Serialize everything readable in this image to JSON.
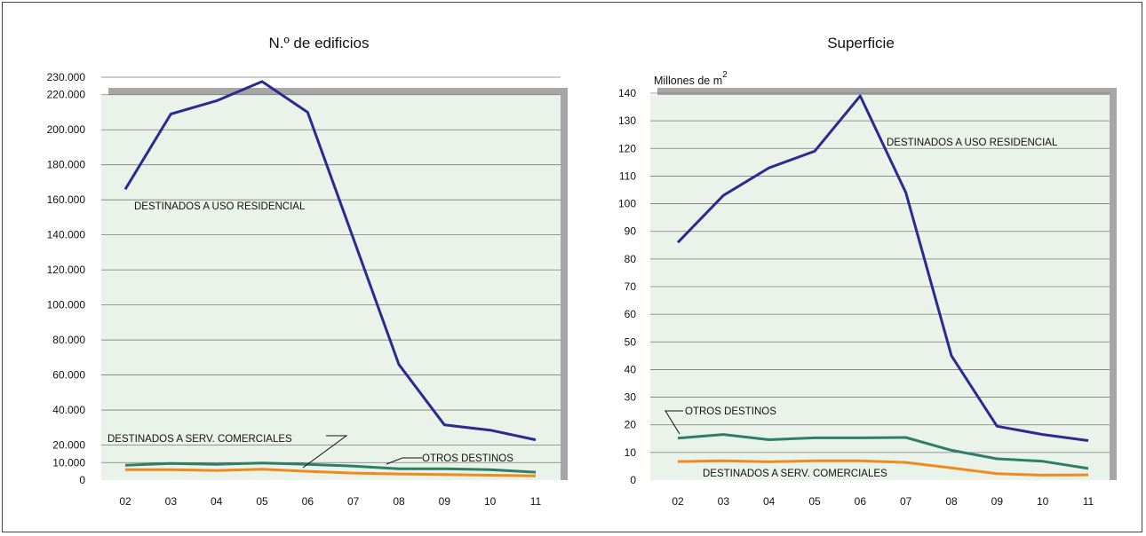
{
  "chart_data": [
    {
      "type": "line",
      "title": "N.º de edificios",
      "x": [
        "02",
        "03",
        "04",
        "05",
        "06",
        "07",
        "08",
        "09",
        "10",
        "11"
      ],
      "yticks": [
        0,
        10000,
        20000,
        40000,
        60000,
        80000,
        100000,
        120000,
        140000,
        160000,
        180000,
        200000,
        220000,
        230000
      ],
      "ytick_labels": [
        "0",
        "10.000",
        "20.000",
        "40.000",
        "60.000",
        "80.000",
        "100.000",
        "120.000",
        "140.000",
        "160.000",
        "180.000",
        "200.000",
        "220.000",
        "230.000"
      ],
      "ylim": [
        0,
        230000
      ],
      "grid": true,
      "series": [
        {
          "name": "DESTINADOS A USO RESIDENCIAL",
          "color": "#2b2b8f",
          "values": [
            166000,
            209000,
            216500,
            227500,
            210000,
            138000,
            66000,
            31500,
            28500,
            23000
          ]
        },
        {
          "name": "OTROS DESTINOS",
          "color": "#2e7d65",
          "values": [
            8500,
            9500,
            9000,
            9800,
            9000,
            8000,
            6500,
            6500,
            6000,
            4500
          ]
        },
        {
          "name": "DESTINADOS A SERV. COMERCIALES",
          "color": "#f08a1c",
          "values": [
            6000,
            6000,
            5500,
            6200,
            5000,
            4000,
            3500,
            3200,
            2800,
            2400
          ]
        }
      ],
      "annotations": [
        "DESTINADOS A USO RESIDENCIAL",
        "DESTINADOS A SERV. COMERCIALES",
        "OTROS DESTINOS"
      ]
    },
    {
      "type": "line",
      "title": "Superficie",
      "ylabel": "Millones de m",
      "ylabel_sup": "2",
      "x": [
        "02",
        "03",
        "04",
        "05",
        "06",
        "07",
        "08",
        "09",
        "10",
        "11"
      ],
      "yticks": [
        0,
        10,
        20,
        30,
        40,
        50,
        60,
        70,
        80,
        90,
        100,
        110,
        120,
        130,
        140
      ],
      "ytick_labels": [
        "0",
        "10",
        "20",
        "30",
        "40",
        "50",
        "60",
        "70",
        "80",
        "90",
        "100",
        "110",
        "120",
        "130",
        "140"
      ],
      "ylim": [
        0,
        140
      ],
      "grid": true,
      "series": [
        {
          "name": "DESTINADOS A USO RESIDENCIAL",
          "color": "#2b2b8f",
          "values": [
            86,
            103,
            113,
            119,
            139,
            104,
            45,
            19.5,
            16.5,
            14.3
          ]
        },
        {
          "name": "OTROS DESTINOS",
          "color": "#2e7d65",
          "values": [
            15.2,
            16.5,
            14.6,
            15.3,
            15.3,
            15.4,
            10.8,
            7.7,
            6.8,
            4.2
          ]
        },
        {
          "name": "DESTINADOS A SERV. COMERCIALES",
          "color": "#f08a1c",
          "values": [
            6.7,
            7,
            6.6,
            7,
            7,
            6.4,
            4.4,
            2.3,
            1.8,
            1.9
          ]
        }
      ],
      "annotations": [
        "DESTINADOS A USO RESIDENCIAL",
        "OTROS DESTINOS",
        "DESTINADOS A SERV. COMERCIALES"
      ]
    }
  ],
  "colors": {
    "plot_background": "#eaf3e9",
    "plot_shadow": "#a6a6a6",
    "grid": "#7a7a7a"
  }
}
